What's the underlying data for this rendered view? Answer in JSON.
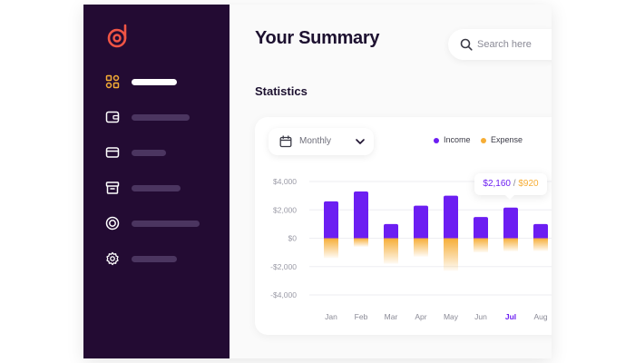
{
  "header": {
    "title": "Your Summary",
    "search_placeholder": "Search here"
  },
  "sidebar": {
    "logo_icon": "d-letter-logo",
    "items": [
      {
        "icon": "dashboard-grid-icon",
        "active": true
      },
      {
        "icon": "wallet-icon",
        "active": false
      },
      {
        "icon": "credit-card-icon",
        "active": false
      },
      {
        "icon": "archive-box-icon",
        "active": false
      },
      {
        "icon": "target-icon",
        "active": false
      },
      {
        "icon": "gear-icon",
        "active": false
      }
    ]
  },
  "statistics": {
    "title": "Statistics",
    "period": "Monthly",
    "legend": {
      "income": "Income",
      "expense": "Expense"
    },
    "tooltip": {
      "income": "$2,160",
      "separator": "/",
      "expense": "$920"
    }
  },
  "colors": {
    "sidebar": "#230b33",
    "accent_logo": "#f05545",
    "active_icon": "#f6ad35",
    "income": "#6c1ef2",
    "expense": "#f6ad35",
    "title": "#1d1130"
  },
  "chart_data": {
    "type": "bar",
    "categories": [
      "Jan",
      "Feb",
      "Mar",
      "Apr",
      "May",
      "Jun",
      "Jul",
      "Aug"
    ],
    "highlight": "Jul",
    "series": [
      {
        "name": "Income",
        "values": [
          2600,
          3300,
          1000,
          2300,
          3000,
          1500,
          2160,
          1000
        ]
      },
      {
        "name": "Expense",
        "values": [
          -1400,
          -600,
          -1800,
          -1300,
          -2300,
          -1000,
          -920,
          -900
        ]
      }
    ],
    "yticks": [
      "$4,000",
      "$2,000",
      "$0",
      "-$2,000",
      "-$4,000"
    ],
    "ylim": [
      -4000,
      4000
    ],
    "grid": true,
    "legend_position": "top-right"
  }
}
